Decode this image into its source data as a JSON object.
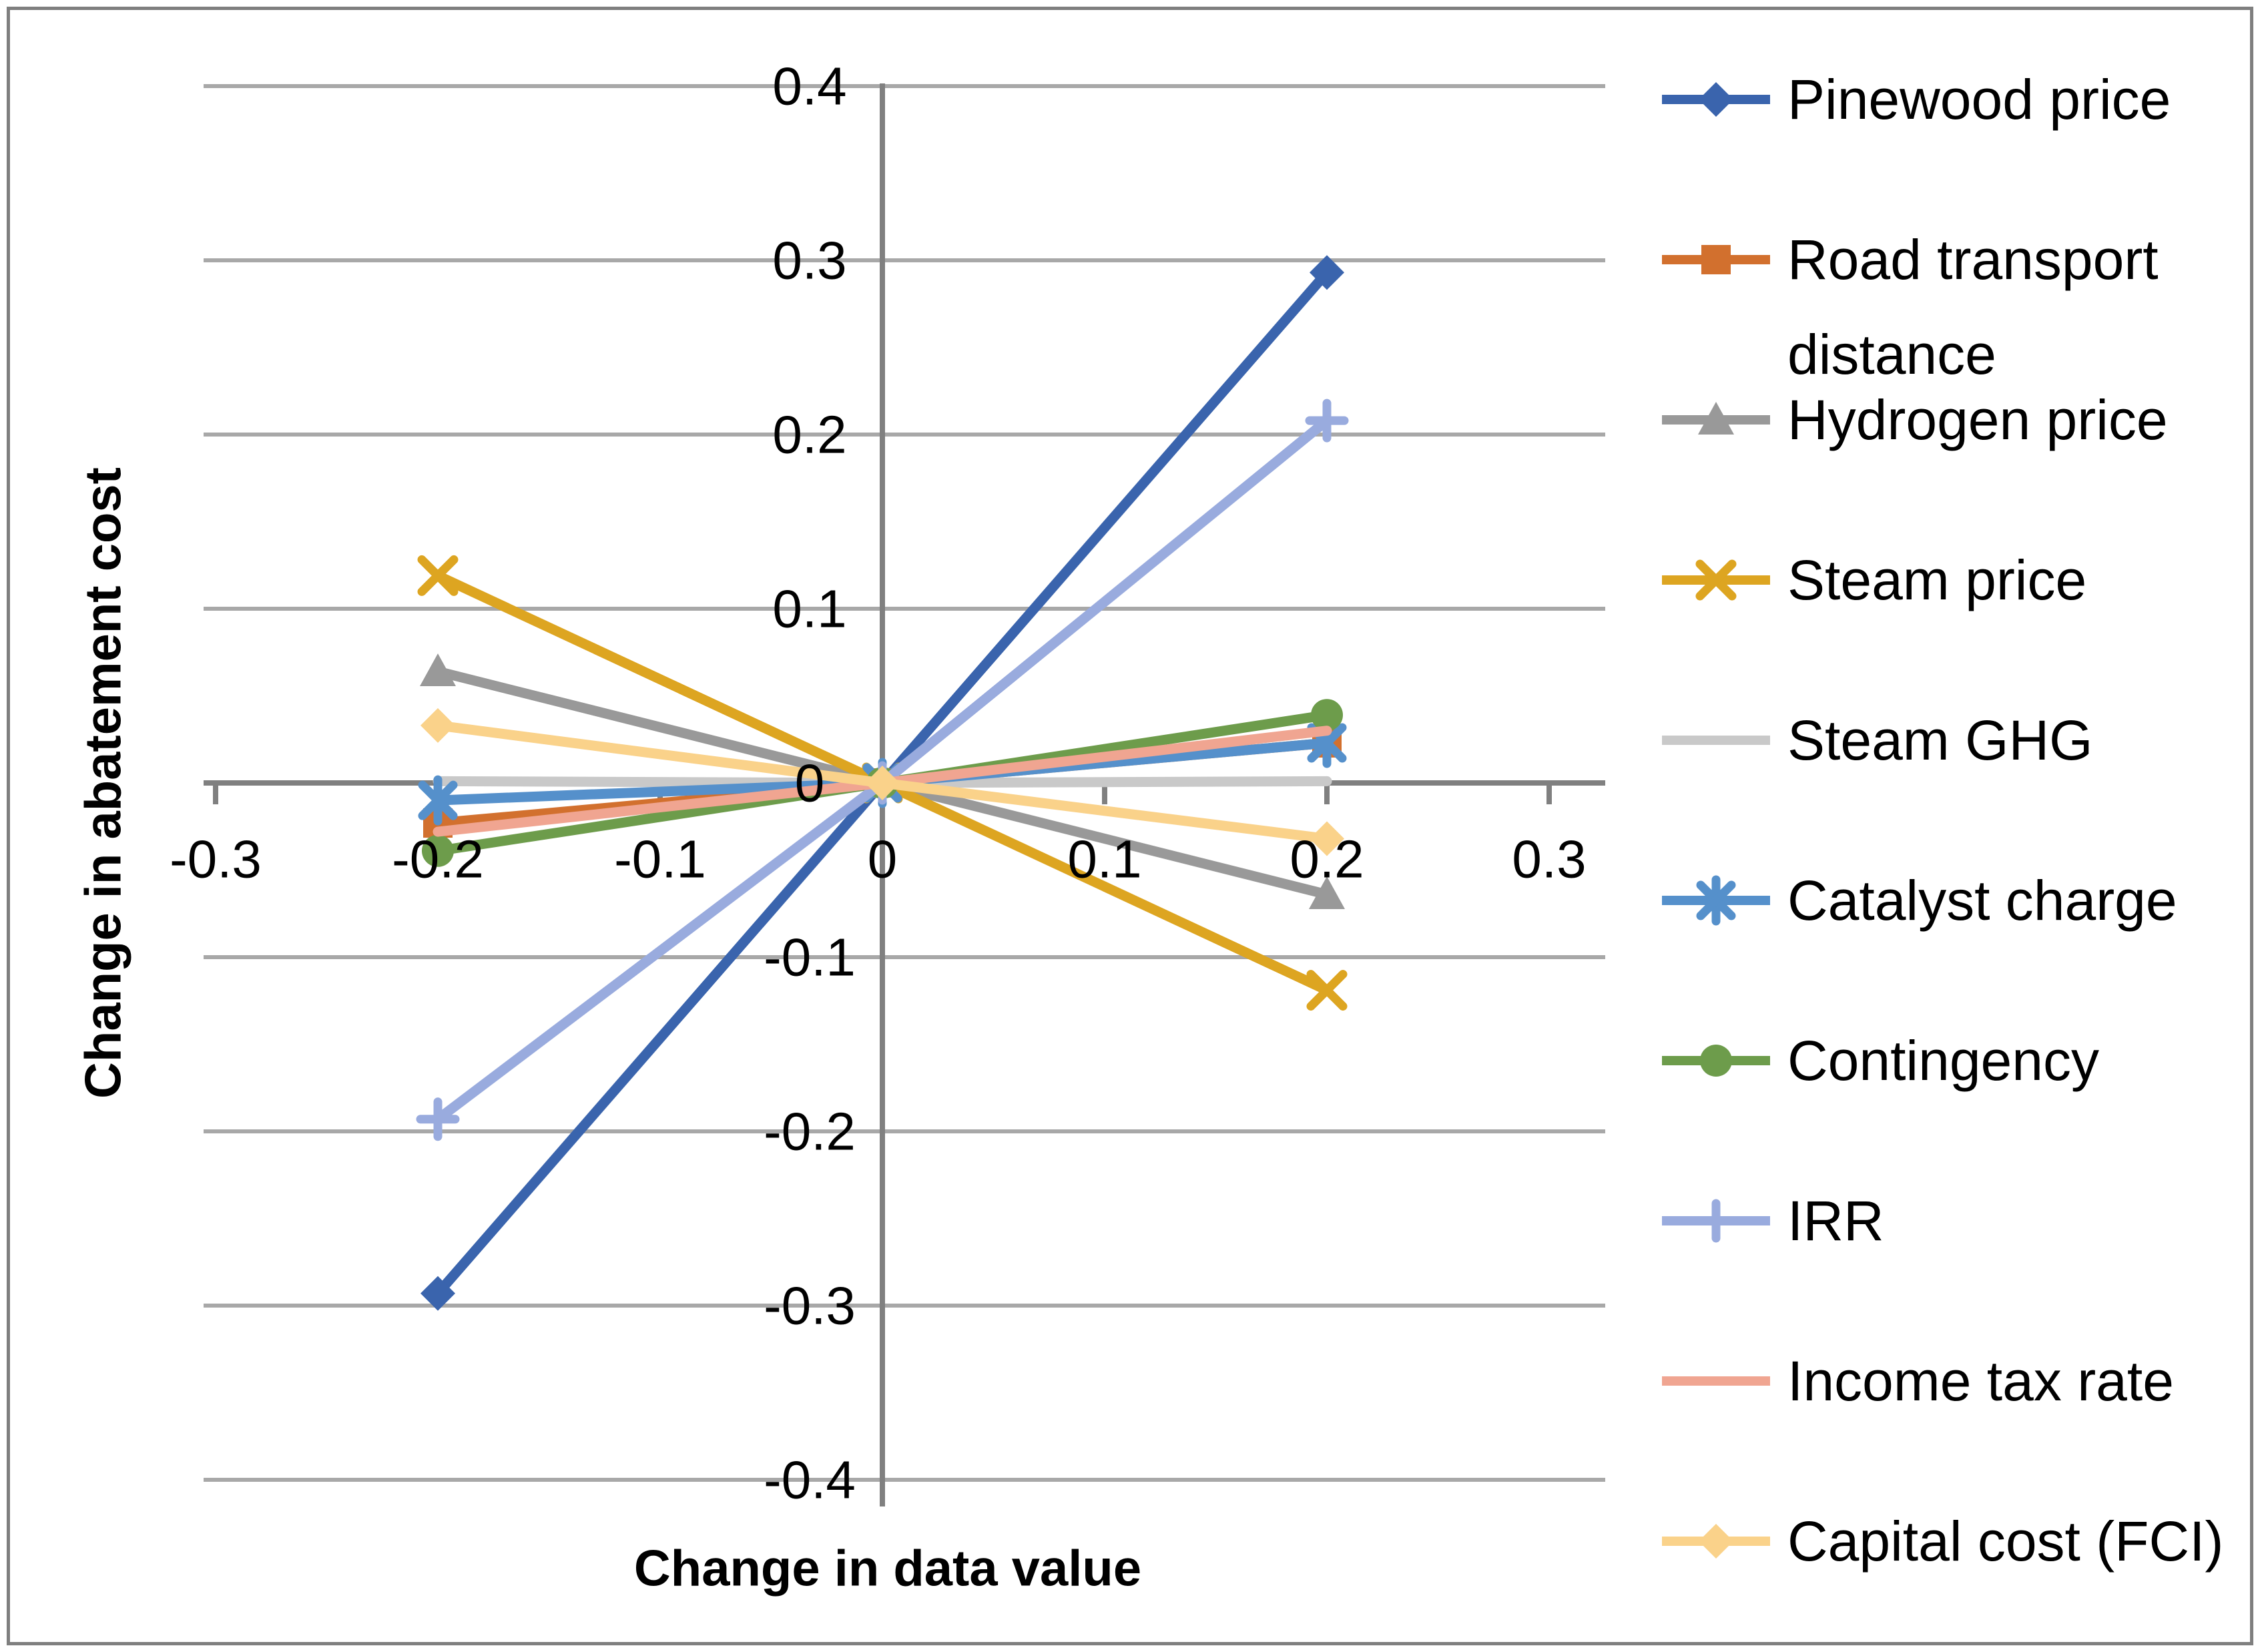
{
  "figure": {
    "frame_color": "#7F7F7F",
    "background_color": "#FFFFFF",
    "grid_color": "#A8A8A8",
    "axis_color": "#808080",
    "text_color": "#000000"
  },
  "chart_data": {
    "type": "line",
    "title": "",
    "xlabel": "Change in data value",
    "ylabel": "Change in abatement cost",
    "x": [
      -0.2,
      0,
      0.2
    ],
    "xlim": [
      -0.3,
      0.3
    ],
    "ylim": [
      -0.4,
      0.4
    ],
    "x_ticks": [
      -0.3,
      -0.2,
      -0.1,
      0,
      0.1,
      0.2,
      0.3
    ],
    "y_ticks": [
      0.4,
      0.3,
      0.2,
      0.1,
      0,
      -0.1,
      -0.2,
      -0.3,
      -0.4
    ],
    "grid": "horizontal",
    "legend_position": "right",
    "series": [
      {
        "name": "Pinewood price",
        "label_lines": [
          "Pinewood price"
        ],
        "values": [
          -0.293,
          0,
          0.293
        ],
        "color": "#3A64AD",
        "marker": "diamond"
      },
      {
        "name": "Road transport distance",
        "label_lines": [
          "Road transport",
          "distance"
        ],
        "values": [
          -0.023,
          0,
          0.023
        ],
        "color": "#D2702E",
        "marker": "square"
      },
      {
        "name": "Hydrogen price",
        "label_lines": [
          "Hydrogen price"
        ],
        "values": [
          0.064,
          0,
          -0.064
        ],
        "color": "#999999",
        "marker": "triangle"
      },
      {
        "name": "Steam price",
        "label_lines": [
          "Steam price"
        ],
        "values": [
          0.119,
          0,
          -0.119
        ],
        "color": "#DDA521",
        "marker": "x"
      },
      {
        "name": "Steam GHG",
        "label_lines": [
          "Steam GHG"
        ],
        "values": [
          0.001,
          0,
          0.001
        ],
        "color": "#C9C9C9",
        "marker": "none"
      },
      {
        "name": "Catalyst charge",
        "label_lines": [
          "Catalyst charge"
        ],
        "values": [
          -0.01,
          0,
          0.023
        ],
        "color": "#5590CB",
        "marker": "asterisk"
      },
      {
        "name": "Contingency",
        "label_lines": [
          "Contingency"
        ],
        "values": [
          -0.039,
          0,
          0.039
        ],
        "color": "#6D9C4B",
        "marker": "circle"
      },
      {
        "name": "IRR",
        "label_lines": [
          "IRR"
        ],
        "values": [
          -0.193,
          0,
          0.208
        ],
        "color": "#99ABDE",
        "marker": "plus"
      },
      {
        "name": "Income tax rate",
        "label_lines": [
          "Income tax rate"
        ],
        "values": [
          -0.028,
          0,
          0.03
        ],
        "color": "#F0A591",
        "marker": "none"
      },
      {
        "name": "Capital cost (FCI)",
        "label_lines": [
          "Capital cost (FCI)"
        ],
        "values": [
          0.033,
          0,
          -0.032
        ],
        "color": "#FAD28A",
        "marker": "diamond"
      }
    ]
  }
}
